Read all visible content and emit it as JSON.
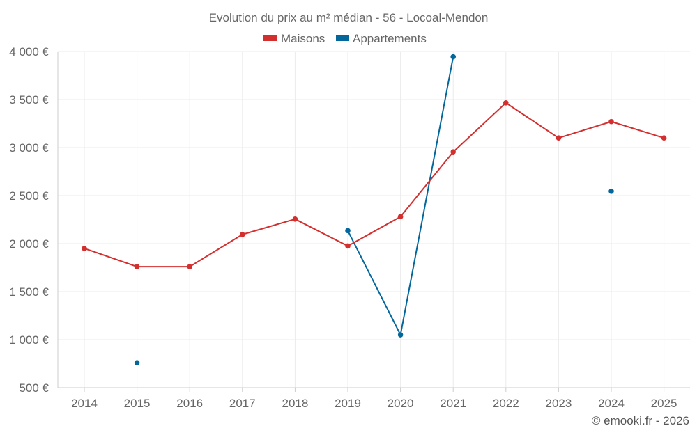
{
  "chart_data": {
    "type": "line",
    "title": "Evolution du prix au m² médian - 56 - Locoal-Mendon",
    "categories": [
      "2014",
      "2015",
      "2016",
      "2017",
      "2018",
      "2019",
      "2020",
      "2021",
      "2022",
      "2023",
      "2024",
      "2025"
    ],
    "series": [
      {
        "name": "Maisons",
        "color": "#d32f2f",
        "values": [
          1950,
          1760,
          1760,
          2095,
          2255,
          1975,
          2280,
          2955,
          3465,
          3100,
          3270,
          3100
        ]
      },
      {
        "name": "Appartements",
        "color": "#04679b",
        "values": [
          null,
          760,
          null,
          null,
          null,
          2135,
          1050,
          3945,
          null,
          null,
          2545,
          null
        ]
      }
    ],
    "ylim": [
      500,
      4000
    ],
    "yticks": [
      500,
      1000,
      1500,
      2000,
      2500,
      3000,
      3500,
      4000
    ],
    "ytick_labels": [
      "500 €",
      "1 000 €",
      "1 500 €",
      "2 000 €",
      "2 500 €",
      "3 000 €",
      "3 500 €",
      "4 000 €"
    ],
    "xlabel": "",
    "ylabel": "",
    "grid": true,
    "legend_position": "top-center"
  },
  "credit": "© emooki.fr - 2026"
}
